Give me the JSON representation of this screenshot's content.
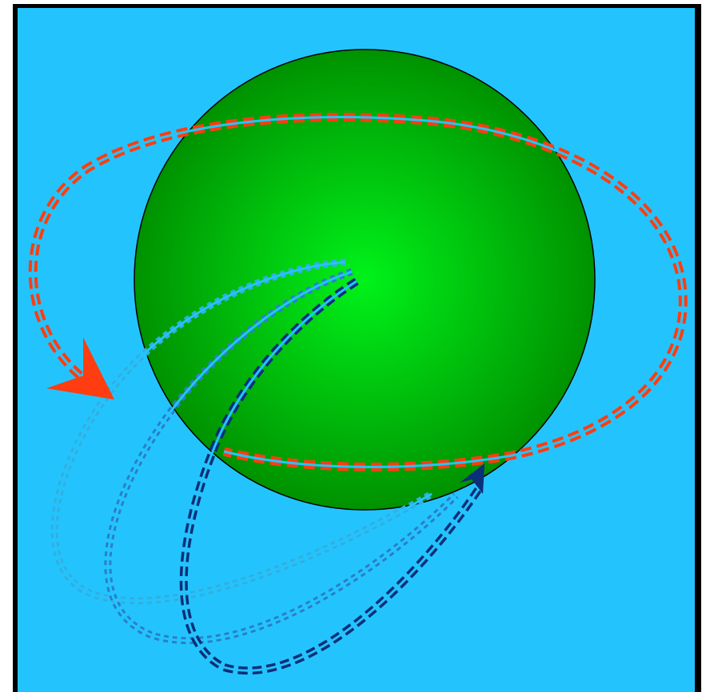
{
  "colors": {
    "background": "#23c4fd",
    "frame": "#000000",
    "sphere_center": "#00f21a",
    "sphere_edge": "#009200",
    "sphere_outline": "#000000",
    "equator_orbit": "#ff3d10",
    "equator_arrow": "#ff3d10",
    "loop_light": "#33aee0",
    "loop_medium": "#2a7fc9",
    "loop_dark": "#0b2f78",
    "loop_arrow": "#0b2f78"
  },
  "icons": {
    "equator_arrow": "arrowhead",
    "loop_arrow": "arrowhead"
  }
}
